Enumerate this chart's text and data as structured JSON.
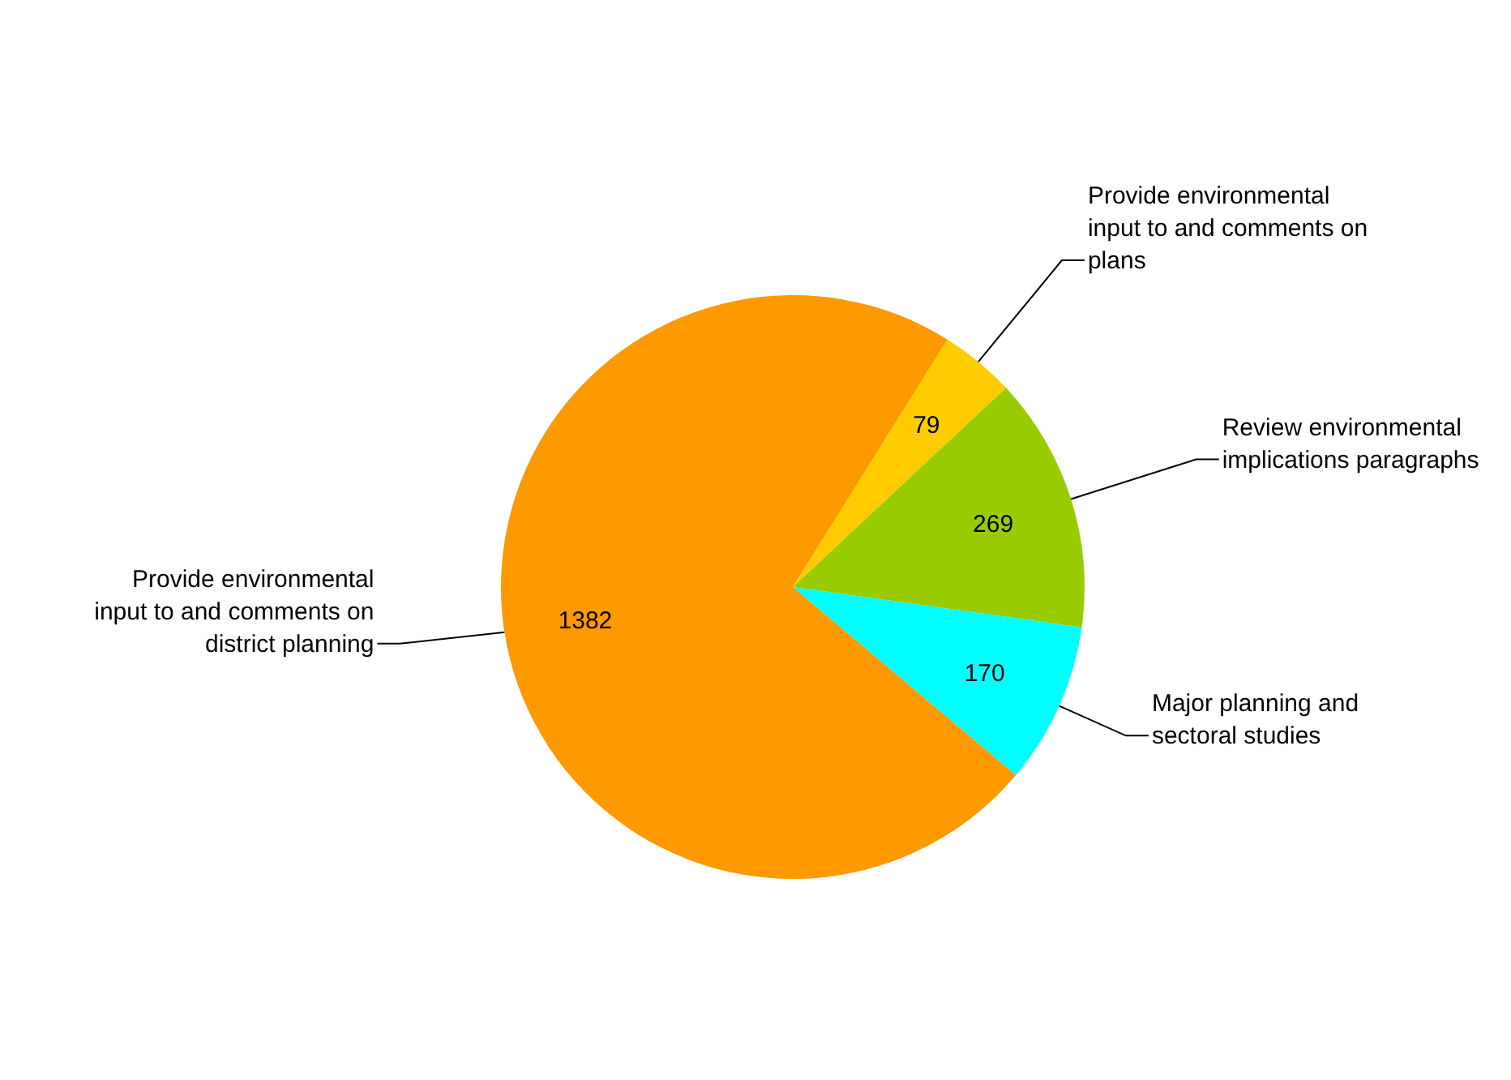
{
  "chart_data": {
    "type": "pie",
    "categories": [
      "Provide environmental input to and comments on plans",
      "Review environmental implications paragraphs",
      "Major planning and sectoral studies",
      "Provide environmental input to and comments on district planning"
    ],
    "values": [
      79,
      269,
      170,
      1382
    ],
    "colors": [
      "#ffcc00",
      "#99cc00",
      "#00ffff",
      "#ff9900"
    ],
    "data_labels": true
  }
}
